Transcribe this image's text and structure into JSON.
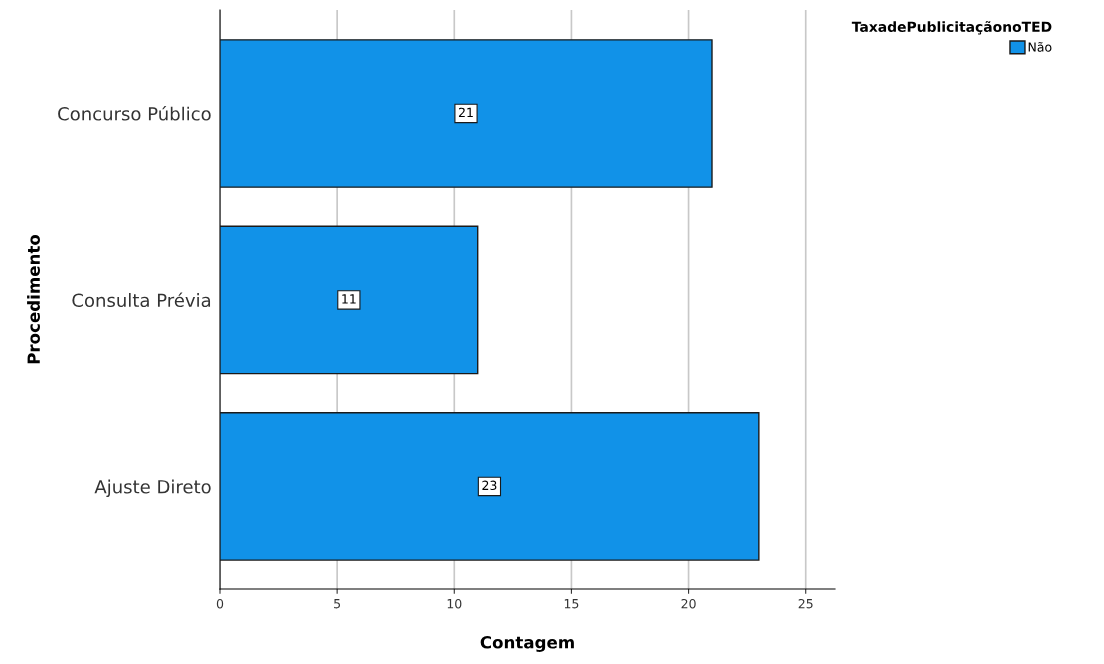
{
  "chart_data": {
    "type": "bar",
    "orientation": "horizontal",
    "xlabel": "Contagem",
    "ylabel": "Procedimento",
    "legend_title": "TaxadePublicitaçãonoTED",
    "categories": [
      "Concurso Público",
      "Consulta Prévia",
      "Ajuste Direto"
    ],
    "series": [
      {
        "name": "Não",
        "color": "#1192e8",
        "values": [
          21,
          11,
          23
        ]
      }
    ],
    "xlim": [
      0,
      26.25
    ],
    "xticks": [
      0,
      5,
      10,
      15,
      20,
      25
    ],
    "grid": "x",
    "legend": "top right",
    "data_labels": true
  }
}
